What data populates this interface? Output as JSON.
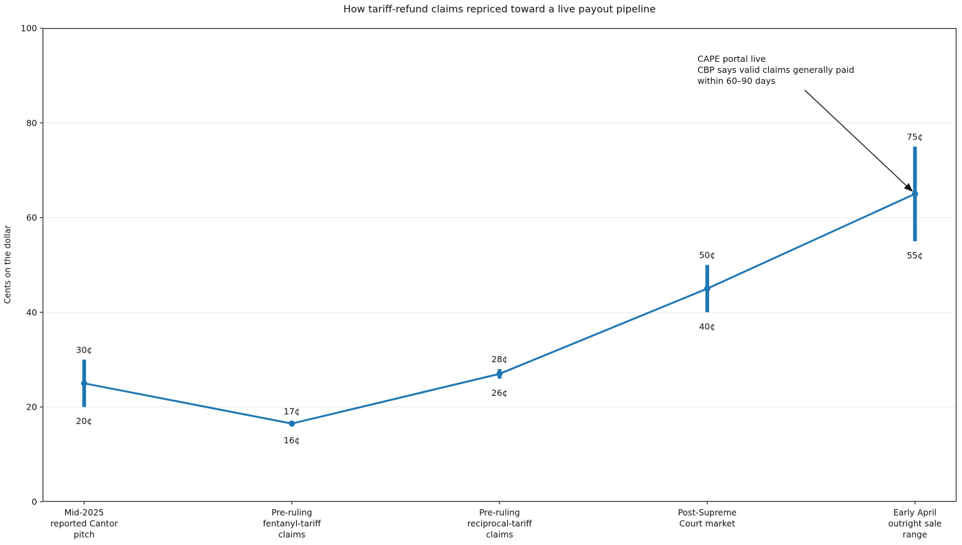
{
  "chart_data": {
    "type": "line",
    "title": "How tariff-refund claims repriced toward a live payout pipeline",
    "ylabel": "Cents on the dollar",
    "xlabel": "",
    "ylim": [
      0,
      100
    ],
    "yticks": [
      0,
      20,
      40,
      60,
      80,
      100
    ],
    "grid": "horizontal-light",
    "legend": "none",
    "series_color": "#1f77b4",
    "grid_color": "#ebebeb",
    "spine_color": "#2b2b2b",
    "text_color": "#111111",
    "categories": [
      "Mid-2025\nreported Cantor\npitch",
      "Pre-ruling\nfentanyl-tariff\nclaims",
      "Pre-ruling\nreciprocal-tariff\nclaims",
      "Post-Supreme\nCourt market",
      "Early April\noutright sale\nrange"
    ],
    "series": [
      {
        "name": "midpoint price",
        "values": [
          25,
          16.5,
          27,
          45,
          65
        ]
      }
    ],
    "error_low": [
      20,
      16,
      26,
      40,
      55
    ],
    "error_high": [
      30,
      17,
      28,
      50,
      75
    ],
    "point_labels": [
      {
        "high": "30¢",
        "low": "20¢"
      },
      {
        "high": "17¢",
        "low": "16¢"
      },
      {
        "high": "28¢",
        "low": "26¢"
      },
      {
        "high": "50¢",
        "low": "40¢"
      },
      {
        "high": "75¢",
        "low": "55¢"
      }
    ],
    "annotation": {
      "lines": [
        "CAPE portal live",
        "CBP says valid claims generally paid",
        "within 60–90 days"
      ],
      "target_category_index": 4,
      "target_value": 65
    }
  }
}
